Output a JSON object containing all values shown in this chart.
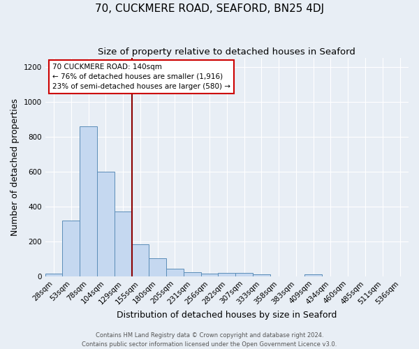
{
  "title": "70, CUCKMERE ROAD, SEAFORD, BN25 4DJ",
  "subtitle": "Size of property relative to detached houses in Seaford",
  "xlabel": "Distribution of detached houses by size in Seaford",
  "ylabel": "Number of detached properties",
  "categories": [
    "28sqm",
    "53sqm",
    "78sqm",
    "104sqm",
    "129sqm",
    "155sqm",
    "180sqm",
    "205sqm",
    "231sqm",
    "256sqm",
    "282sqm",
    "307sqm",
    "333sqm",
    "358sqm",
    "383sqm",
    "409sqm",
    "434sqm",
    "460sqm",
    "485sqm",
    "511sqm",
    "536sqm"
  ],
  "values": [
    15,
    320,
    860,
    600,
    370,
    183,
    103,
    45,
    25,
    15,
    20,
    20,
    10,
    0,
    0,
    12,
    0,
    0,
    0,
    0,
    0
  ],
  "bar_color": "#c5d8f0",
  "bar_edge_color": "#5b8db8",
  "vline_color": "#8b0000",
  "vline_x": 4.5,
  "annotation_text": "70 CUCKMERE ROAD: 140sqm\n← 76% of detached houses are smaller (1,916)\n23% of semi-detached houses are larger (580) →",
  "annotation_box_color": "#ffffff",
  "annotation_box_edge": "#cc0000",
  "ylim": [
    0,
    1250
  ],
  "yticks": [
    0,
    200,
    400,
    600,
    800,
    1000,
    1200
  ],
  "footer_line1": "Contains HM Land Registry data © Crown copyright and database right 2024.",
  "footer_line2": "Contains public sector information licensed under the Open Government Licence v3.0.",
  "bg_color": "#e8eef5",
  "title_fontsize": 11,
  "subtitle_fontsize": 9.5,
  "label_fontsize": 9,
  "tick_fontsize": 7.5,
  "footer_fontsize": 6,
  "annotation_fontsize": 7.5
}
